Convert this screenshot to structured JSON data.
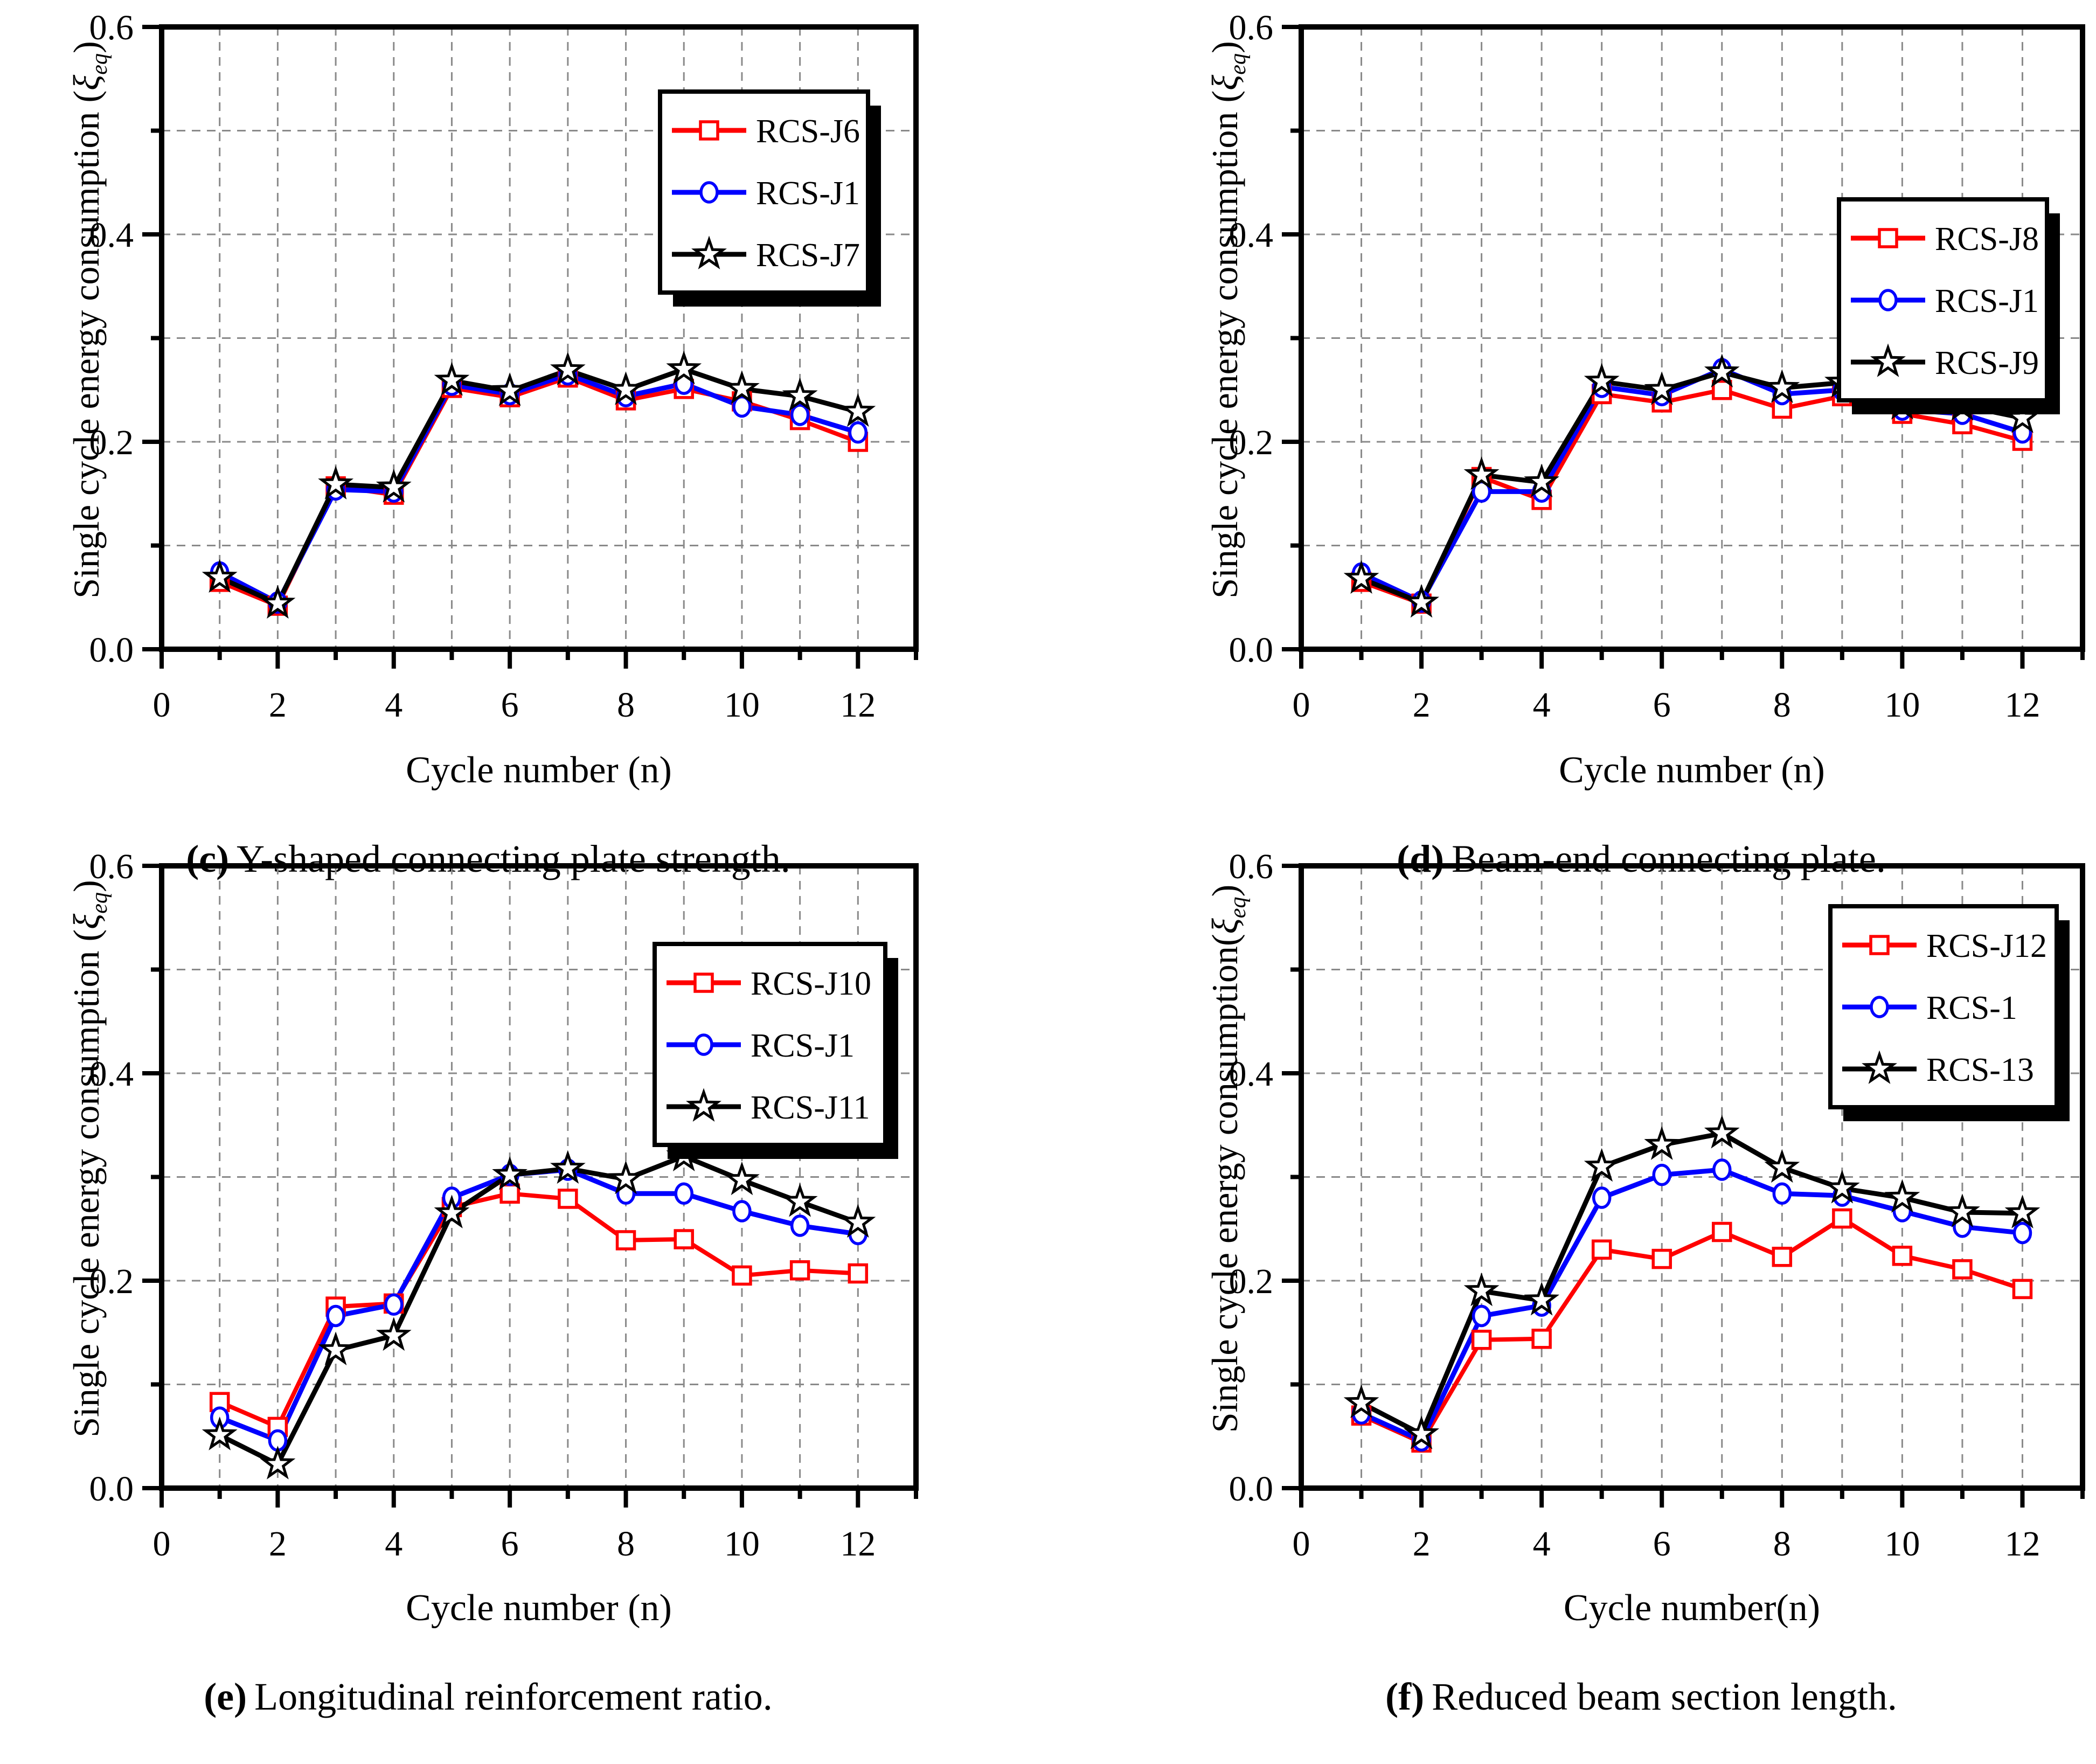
{
  "page": {
    "background": "#FFFFFF"
  },
  "colors": {
    "red": "#FF0000",
    "blue": "#0000FF",
    "black": "#000000",
    "grid": "#8A8A8A",
    "frame": "#000000"
  },
  "chart_data": [
    {
      "type": "line",
      "panel": "c",
      "caption_label": "(c)",
      "caption_text": "Y-shaped connecting plate strength.",
      "xlabel": "Cycle number (n)",
      "ylabel": {
        "prefix": "Single cycle energy consumption (",
        "symbol": "ξ",
        "sub": "eq",
        "suffix": ")"
      },
      "x": [
        1,
        2,
        3,
        4,
        5,
        6,
        7,
        8,
        9,
        10,
        11,
        12
      ],
      "xlim": [
        0,
        13
      ],
      "ylim": [
        0,
        0.6
      ],
      "xticks": [
        0,
        2,
        4,
        6,
        8,
        10,
        12
      ],
      "xtick_minor": [
        1,
        3,
        5,
        7,
        9,
        11,
        13
      ],
      "ytick_labels": [
        "0.0",
        "0.2",
        "0.4",
        "0.6"
      ],
      "yticks": [
        0,
        0.2,
        0.4,
        0.6
      ],
      "ytick_minor": [
        0.1,
        0.3,
        0.5
      ],
      "grid": {
        "x_step": 1,
        "y_step": 0.1,
        "style": "dashed",
        "on": true
      },
      "legend_position": "top-right",
      "series": [
        {
          "name": "RCS-J6",
          "color": "#FF0000",
          "marker": "square",
          "values": [
            0.065,
            0.042,
            0.157,
            0.149,
            0.252,
            0.243,
            0.262,
            0.24,
            0.251,
            0.239,
            0.221,
            0.2
          ]
        },
        {
          "name": "RCS-J1",
          "color": "#0000FF",
          "marker": "circle",
          "values": [
            0.074,
            0.045,
            0.154,
            0.152,
            0.255,
            0.246,
            0.265,
            0.244,
            0.256,
            0.234,
            0.226,
            0.209
          ]
        },
        {
          "name": "RCS-J7",
          "color": "#000000",
          "marker": "star",
          "values": [
            0.069,
            0.044,
            0.159,
            0.156,
            0.259,
            0.249,
            0.269,
            0.25,
            0.27,
            0.251,
            0.244,
            0.229
          ]
        }
      ]
    },
    {
      "type": "line",
      "panel": "d",
      "caption_label": "(d)",
      "caption_text": "Beam-end connecting plate.",
      "xlabel": "Cycle number (n)",
      "ylabel": {
        "prefix": "Single cycle energy consumption (",
        "symbol": "ξ",
        "sub": "eq",
        "suffix": ")"
      },
      "x": [
        1,
        2,
        3,
        4,
        5,
        6,
        7,
        8,
        9,
        10,
        11,
        12
      ],
      "xlim": [
        0,
        13
      ],
      "ylim": [
        0,
        0.6
      ],
      "xticks": [
        0,
        2,
        4,
        6,
        8,
        10,
        12
      ],
      "xtick_minor": [
        1,
        3,
        5,
        7,
        9,
        11,
        13
      ],
      "ytick_labels": [
        "0.0",
        "0.2",
        "0.4",
        "0.6"
      ],
      "yticks": [
        0,
        0.2,
        0.4,
        0.6
      ],
      "ytick_minor": [
        0.1,
        0.3,
        0.5
      ],
      "grid": {
        "x_step": 1,
        "y_step": 0.1,
        "style": "dashed",
        "on": true
      },
      "legend_position": "top-right",
      "series": [
        {
          "name": "RCS-J8",
          "color": "#FF0000",
          "marker": "square",
          "values": [
            0.065,
            0.044,
            0.166,
            0.144,
            0.246,
            0.238,
            0.25,
            0.232,
            0.244,
            0.227,
            0.217,
            0.201
          ]
        },
        {
          "name": "RCS-J1",
          "color": "#0000FF",
          "marker": "circle",
          "values": [
            0.073,
            0.046,
            0.152,
            0.152,
            0.253,
            0.245,
            0.27,
            0.246,
            0.25,
            0.231,
            0.227,
            0.209
          ]
        },
        {
          "name": "RCS-J9",
          "color": "#000000",
          "marker": "star",
          "values": [
            0.068,
            0.045,
            0.168,
            0.161,
            0.258,
            0.25,
            0.267,
            0.252,
            0.257,
            0.236,
            0.235,
            0.223
          ]
        }
      ]
    },
    {
      "type": "line",
      "panel": "e",
      "caption_label": "(e)",
      "caption_text": "Longitudinal reinforcement ratio.",
      "xlabel": "Cycle number (n)",
      "ylabel": {
        "prefix": "Single cycle energy consumption (",
        "symbol": "ξ",
        "sub": "eq",
        "suffix": ")"
      },
      "x": [
        1,
        2,
        3,
        4,
        5,
        6,
        7,
        8,
        9,
        10,
        11,
        12
      ],
      "xlim": [
        0,
        13
      ],
      "ylim": [
        0,
        0.6
      ],
      "xticks": [
        0,
        2,
        4,
        6,
        8,
        10,
        12
      ],
      "xtick_minor": [
        1,
        3,
        5,
        7,
        9,
        11,
        13
      ],
      "ytick_labels": [
        "0.0",
        "0.2",
        "0.4",
        "0.6"
      ],
      "yticks": [
        0,
        0.2,
        0.4,
        0.6
      ],
      "ytick_minor": [
        0.1,
        0.3,
        0.5
      ],
      "grid": {
        "x_step": 1,
        "y_step": 0.1,
        "style": "dashed",
        "on": true
      },
      "legend_position": "top-right",
      "series": [
        {
          "name": "RCS-J10",
          "color": "#FF0000",
          "marker": "square",
          "values": [
            0.083,
            0.059,
            0.175,
            0.178,
            0.271,
            0.284,
            0.279,
            0.239,
            0.24,
            0.205,
            0.21,
            0.207
          ]
        },
        {
          "name": "RCS-J1",
          "color": "#0000FF",
          "marker": "circle",
          "values": [
            0.068,
            0.046,
            0.166,
            0.177,
            0.28,
            0.302,
            0.307,
            0.284,
            0.284,
            0.267,
            0.253,
            0.245
          ]
        },
        {
          "name": "RCS-J11",
          "color": "#000000",
          "marker": "star",
          "values": [
            0.051,
            0.023,
            0.133,
            0.147,
            0.265,
            0.302,
            0.308,
            0.298,
            0.32,
            0.297,
            0.276,
            0.256
          ]
        }
      ]
    },
    {
      "type": "line",
      "panel": "f",
      "caption_label": "(f)",
      "caption_text": "Reduced beam section length.",
      "xlabel": "Cycle number(n)",
      "ylabel": {
        "prefix": "Single cycle energy consumption(",
        "symbol": "ξ",
        "sub": "eq",
        "suffix": ")"
      },
      "x": [
        1,
        2,
        3,
        4,
        5,
        6,
        7,
        8,
        9,
        10,
        11,
        12
      ],
      "xlim": [
        0,
        13
      ],
      "ylim": [
        0,
        0.6
      ],
      "xticks": [
        0,
        2,
        4,
        6,
        8,
        10,
        12
      ],
      "xtick_minor": [
        1,
        3,
        5,
        7,
        9,
        11,
        13
      ],
      "ytick_labels": [
        "0.0",
        "0.2",
        "0.4",
        "0.6"
      ],
      "yticks": [
        0,
        0.2,
        0.4,
        0.6
      ],
      "ytick_minor": [
        0.1,
        0.3,
        0.5
      ],
      "grid": {
        "x_step": 1,
        "y_step": 0.1,
        "style": "dashed",
        "on": true
      },
      "legend_position": "top-right",
      "series": [
        {
          "name": "RCS-J12",
          "color": "#FF0000",
          "marker": "square",
          "values": [
            0.07,
            0.044,
            0.143,
            0.144,
            0.23,
            0.221,
            0.247,
            0.223,
            0.26,
            0.224,
            0.211,
            0.192
          ]
        },
        {
          "name": "RCS-1",
          "color": "#0000FF",
          "marker": "circle",
          "values": [
            0.072,
            0.046,
            0.166,
            0.176,
            0.28,
            0.302,
            0.307,
            0.284,
            0.282,
            0.267,
            0.252,
            0.246
          ]
        },
        {
          "name": "RCS-13",
          "color": "#000000",
          "marker": "star",
          "values": [
            0.082,
            0.052,
            0.19,
            0.181,
            0.31,
            0.331,
            0.342,
            0.309,
            0.289,
            0.28,
            0.266,
            0.265
          ]
        }
      ]
    }
  ]
}
